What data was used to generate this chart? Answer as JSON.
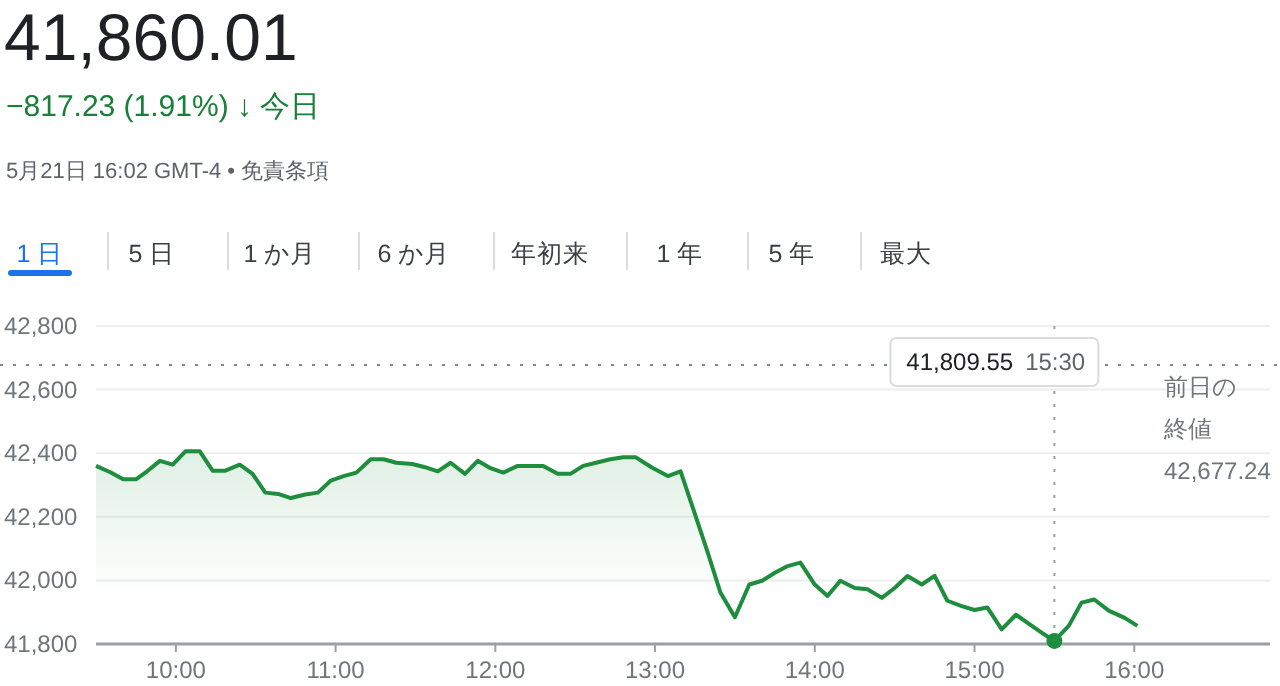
{
  "chart_data": {
    "type": "area",
    "title": "41,860.01",
    "subtitle": "−817.23 (1.91%) ↓ 今日",
    "annotations": [
      "5月21日 16:02 GMT-4 • 免責条項",
      "1 日",
      "5 日",
      "1 か月",
      "6 か月",
      "年初来",
      "1 年",
      "5 年",
      "最大",
      "41,809.55 15:30"
    ],
    "x": [
      9.5,
      9.59,
      9.67,
      9.75,
      9.82,
      9.9,
      9.98,
      10.06,
      10.15,
      10.23,
      10.31,
      10.4,
      10.48,
      10.56,
      10.64,
      10.72,
      10.81,
      10.89,
      10.97,
      11.05,
      11.13,
      11.22,
      11.3,
      11.38,
      11.48,
      11.56,
      11.64,
      11.72,
      11.81,
      11.89,
      11.97,
      12.05,
      12.14,
      12.22,
      12.3,
      12.39,
      12.47,
      12.55,
      12.63,
      12.72,
      12.8,
      12.88,
      12.98,
      13.08,
      13.16,
      13.24,
      13.33,
      13.41,
      13.5,
      13.59,
      13.67,
      13.75,
      13.83,
      13.91,
      14.0,
      14.08,
      14.16,
      14.25,
      14.33,
      14.42,
      14.5,
      14.58,
      14.67,
      14.75,
      14.83,
      14.92,
      15.0,
      15.08,
      15.17,
      15.26,
      15.33,
      15.42,
      15.5,
      15.59,
      15.67,
      15.75,
      15.84,
      15.94,
      16.02
    ],
    "series": [
      {
        "color": "#1e8e3e",
        "values": [
          42360,
          42340,
          42318,
          42318,
          42343,
          42376,
          42364,
          42406,
          42406,
          42345,
          42345,
          42364,
          42335,
          42276,
          42272,
          42259,
          42270,
          42276,
          42314,
          42328,
          42339,
          42381,
          42381,
          42370,
          42366,
          42356,
          42343,
          42370,
          42335,
          42376,
          42353,
          42339,
          42360,
          42360,
          42360,
          42335,
          42335,
          42360,
          42370,
          42381,
          42387,
          42387,
          42355,
          42328,
          42343,
          42223,
          42087,
          41961,
          41884,
          41987,
          41999,
          42024,
          42045,
          42056,
          41987,
          41951,
          41999,
          41976,
          41972,
          41945,
          41976,
          42014,
          41987,
          42014,
          41936,
          41919,
          41907,
          41915,
          41846,
          41892,
          41867,
          41836,
          41809.55,
          41857,
          41930,
          41940,
          41905,
          41882,
          41857
        ]
      }
    ],
    "xlim": [
      9.5,
      16.85
    ],
    "xticks": [
      {
        "value": 10,
        "label": "10:00"
      },
      {
        "value": 11,
        "label": "11:00"
      },
      {
        "value": 12,
        "label": "12:00"
      },
      {
        "value": 13,
        "label": "13:00"
      },
      {
        "value": 14,
        "label": "14:00"
      },
      {
        "value": 15,
        "label": "15:00"
      },
      {
        "value": 16,
        "label": "16:00"
      }
    ],
    "ylim": [
      41800,
      42800
    ],
    "yticks": [
      {
        "value": 41800,
        "label": "41,800"
      },
      {
        "value": 42000,
        "label": "42,000"
      },
      {
        "value": 42200,
        "label": "42,200"
      },
      {
        "value": 42400,
        "label": "42,400"
      },
      {
        "value": 42600,
        "label": "42,600"
      },
      {
        "value": 42800,
        "label": "42,800"
      }
    ],
    "grid": "y",
    "marker": "none",
    "line_style": "solid",
    "ref_lines": [
      {
        "axis": "y",
        "value": 42677.24,
        "label": "前日の終値 42,677.24",
        "line_style": "dotted",
        "color": "#80868b"
      },
      {
        "axis": "x",
        "value": 15.5,
        "line_style": "dotted",
        "color": "#9aa0a6"
      }
    ]
  }
}
